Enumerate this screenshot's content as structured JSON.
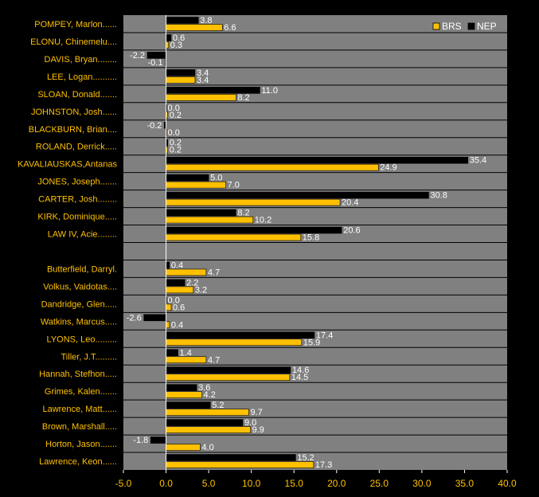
{
  "chart_data": {
    "type": "bar",
    "orientation": "horizontal",
    "categories": [
      "POMPEY, Marlon......",
      "ELONU, Chinemelu....",
      "DAVIS, Bryan........",
      "LEE, Logan..........",
      "SLOAN, Donald.......",
      "JOHNSTON, Josh......",
      "BLACKBURN, Brian....",
      "ROLAND, Derrick.....",
      "KAVALIAUSKAS,Antanas",
      "JONES, Joseph.......",
      "CARTER, Josh........",
      "KIRK, Dominique.....",
      "LAW IV, Acie........",
      "",
      "Butterfield, Darryl.",
      "Volkus, Vaidotas....",
      "Dandridge, Glen.....",
      "Watkins, Marcus.....",
      "LYONS, Leo.........",
      "Tiller, J.T.........",
      "Hannah, Stefhon.....",
      "Grimes, Kalen.......",
      "Lawrence, Matt......",
      "Brown, Marshall.....",
      "Horton, Jason.......",
      "Lawrence, Keon......"
    ],
    "series": [
      {
        "name": "NEP",
        "color": "#000000",
        "values": [
          3.8,
          0.6,
          -2.2,
          3.4,
          11.0,
          0.0,
          -0.2,
          0.2,
          35.4,
          5.0,
          30.8,
          8.2,
          20.6,
          null,
          0.4,
          2.2,
          0.0,
          -2.6,
          17.4,
          1.4,
          14.6,
          3.6,
          5.2,
          9.0,
          -1.8,
          15.2
        ],
        "labels": [
          "3.8",
          "0.6",
          "-2.2",
          "3.4",
          "11.0",
          "0.0",
          "-0.2",
          "0.2",
          "35.4",
          "5.0",
          "30.8",
          "8.2",
          "20.6",
          "",
          "0.4",
          "2.2",
          "0.0",
          "-2.6",
          "17.4",
          "1.4",
          "14.6",
          "3.6",
          "5.2",
          "9.0",
          "-1.8",
          "15.2"
        ]
      },
      {
        "name": "BRS",
        "color": "#FFC000",
        "values": [
          6.6,
          0.3,
          -0.1,
          3.4,
          8.2,
          0.2,
          0.0,
          0.2,
          24.9,
          7.0,
          20.4,
          10.2,
          15.8,
          null,
          4.7,
          3.2,
          0.6,
          0.4,
          15.9,
          4.7,
          14.5,
          4.2,
          9.7,
          9.9,
          4.0,
          17.3
        ],
        "labels": [
          "6.6",
          "0.3",
          "-0.1",
          "3.4",
          "8.2",
          "0.2",
          "0.0",
          "0.2",
          "24.9",
          "7.0",
          "20.4",
          "10.2",
          "15.8",
          "",
          "4.7",
          "3.2",
          "0.6",
          "0.4",
          "15.9",
          "4.7",
          "14.5",
          "4.2",
          "9.7",
          "9.9",
          "4.0",
          "17.3"
        ]
      }
    ],
    "xlim": [
      -5.0,
      40.0
    ],
    "xticks": [
      -5.0,
      0.0,
      5.0,
      10.0,
      15.0,
      20.0,
      25.0,
      30.0,
      35.0,
      40.0
    ],
    "xtick_labels": [
      "-5.0",
      "0.0",
      "5.0",
      "10.0",
      "15.0",
      "20.0",
      "25.0",
      "30.0",
      "35.0",
      "40.0"
    ],
    "legend_order": [
      "BRS",
      "NEP"
    ],
    "legend_position": "top-right",
    "title": "",
    "xlabel": "",
    "ylabel": "",
    "grid": "horizontal",
    "colors": {
      "background": "#000000",
      "plot_area": "#808080",
      "gridline": "#000000",
      "label_text": "#FFC000",
      "value_text": "#FFFFFF"
    }
  }
}
